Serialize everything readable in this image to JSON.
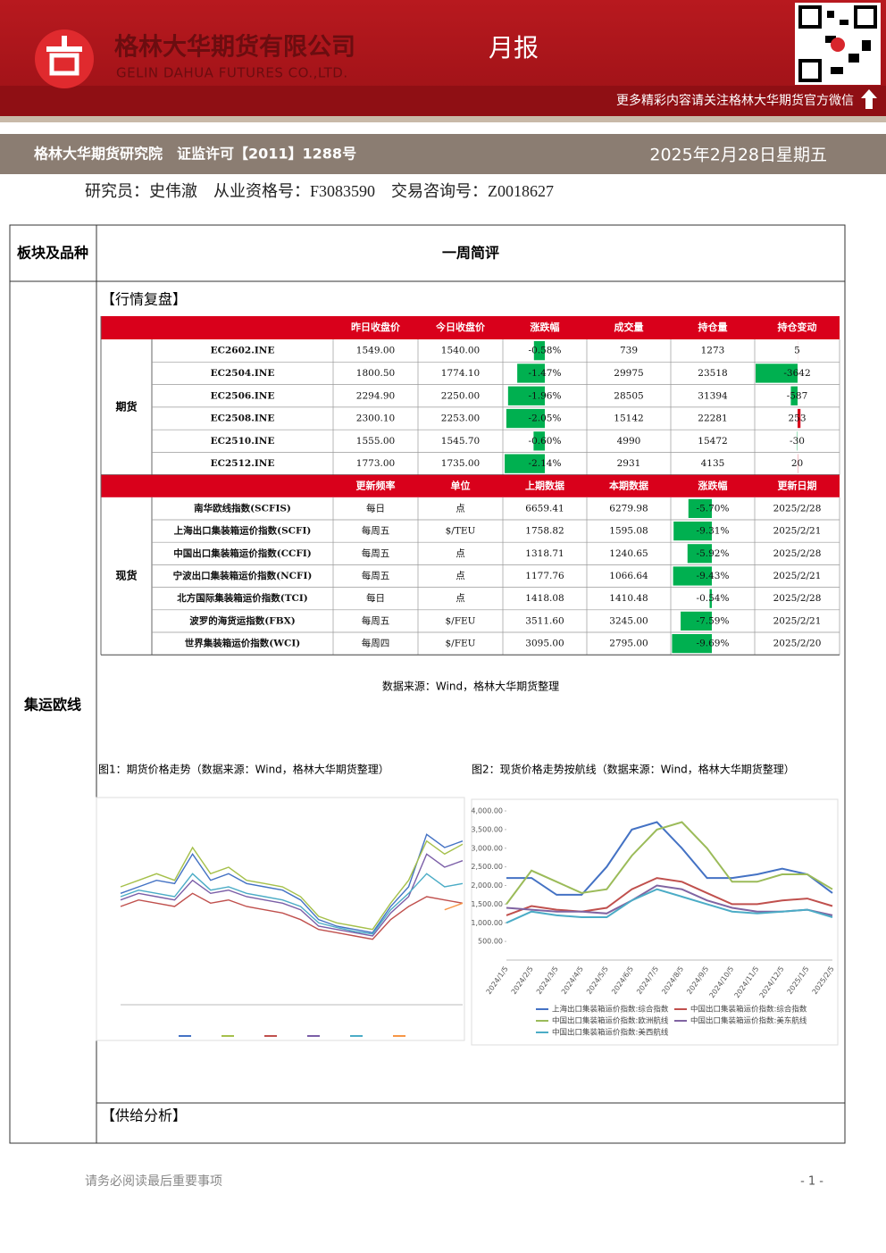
{
  "header": {
    "company_cn": "格林大华期货有限公司",
    "company_en": "GELIN DAHUA FUTURES CO.,LTD.",
    "report_type": "月报",
    "wechat_note": "更多精彩内容请关注格林大华期货官方微信"
  },
  "subheader": {
    "institute": "格林大华期货研究院　证监许可【2011】1288号",
    "date": "2025年2月28日星期五"
  },
  "researcher": "研究员：史伟澈　从业资格号：F3083590　交易咨询号：Z0018627",
  "layout_table": {
    "headers": [
      "板块及品种",
      "一周简评"
    ],
    "category": "集运欧线"
  },
  "sections": {
    "review": "【行情复盘】",
    "supply": "【供给分析】"
  },
  "futures_table": {
    "group": "期货",
    "headers": [
      "昨日收盘价",
      "今日收盘价",
      "涨跌幅",
      "成交量",
      "持仓量",
      "持仓变动"
    ],
    "rows": [
      [
        "EC2602.INE",
        "1549.00",
        "1540.00",
        {
          "value": -0.58,
          "label": "-0.58%"
        },
        739,
        1273,
        5
      ],
      [
        "EC2504.INE",
        "1800.50",
        "1774.10",
        {
          "value": -1.47,
          "label": "-1.47%"
        },
        29975,
        23518,
        -3642
      ],
      [
        "EC2506.INE",
        "2294.90",
        "2250.00",
        {
          "value": -1.96,
          "label": "-1.96%"
        },
        28505,
        31394,
        -587
      ],
      [
        "EC2508.INE",
        "2300.10",
        "2253.00",
        {
          "value": -2.05,
          "label": "-2.05%"
        },
        15142,
        22281,
        253
      ],
      [
        "EC2510.INE",
        "1555.00",
        "1545.70",
        {
          "value": -0.6,
          "label": "-0.60%"
        },
        4990,
        15472,
        -30
      ],
      [
        "EC2512.INE",
        "1773.00",
        "1735.00",
        {
          "value": -2.14,
          "label": "-2.14%"
        },
        2931,
        4135,
        20
      ]
    ]
  },
  "spot_table": {
    "group": "现货",
    "headers": [
      "更新频率",
      "单位",
      "上期数据",
      "本期数据",
      "涨跌幅",
      "更新日期"
    ],
    "rows": [
      [
        "南华欧线指数(SCFIS)",
        "每日",
        "点",
        "6659.41",
        "6279.98",
        {
          "value": -5.7,
          "label": "-5.70%"
        },
        "2025/2/28"
      ],
      [
        "上海出口集装箱运价指数(SCFI)",
        "每周五",
        "$/TEU",
        "1758.82",
        "1595.08",
        {
          "value": -9.31,
          "label": "-9.31%"
        },
        "2025/2/21"
      ],
      [
        "中国出口集装箱运价指数(CCFI)",
        "每周五",
        "点",
        "1318.71",
        "1240.65",
        {
          "value": -5.92,
          "label": "-5.92%"
        },
        "2025/2/28"
      ],
      [
        "宁波出口集装箱运价指数(NCFI)",
        "每周五",
        "点",
        "1177.76",
        "1066.64",
        {
          "value": -9.43,
          "label": "-9.43%"
        },
        "2025/2/21"
      ],
      [
        "北方国际集装箱运价指数(TCI)",
        "每日",
        "点",
        "1418.08",
        "1410.48",
        {
          "value": -0.54,
          "label": "-0.54%"
        },
        "2025/2/28"
      ],
      [
        "波罗的海货运指数(FBX)",
        "每周五",
        "$/FEU",
        "3511.60",
        "3245.00",
        {
          "value": -7.59,
          "label": "-7.59%"
        },
        "2025/2/21"
      ],
      [
        "世界集装箱运价指数(WCI)",
        "每周四",
        "$/FEU",
        "3095.00",
        "2795.00",
        {
          "value": -9.69,
          "label": "-9.69%"
        },
        "2025/2/20"
      ]
    ]
  },
  "source": "数据来源：Wind，格林大华期货整理",
  "chart_data": [
    {
      "type": "line",
      "title": "图1：期货价格走势（数据来源：Wind，格林大华期货整理）",
      "categories": [
        null,
        null,
        null,
        null,
        null,
        null,
        null,
        null,
        null,
        null,
        null,
        null,
        null,
        null,
        null,
        null,
        null,
        null,
        null,
        null
      ],
      "ylim": [
        0,
        3000
      ],
      "series": [
        {
          "color": "#4472c4",
          "values": [
            1700,
            1800,
            1900,
            1850,
            2300,
            1900,
            2000,
            1850,
            1800,
            1750,
            1600,
            1300,
            1200,
            1150,
            1100,
            1500,
            1800,
            2600,
            2400,
            2500
          ]
        },
        {
          "color": "#a5c04b",
          "values": [
            1800,
            1900,
            2000,
            1900,
            2400,
            2000,
            2100,
            1900,
            1850,
            1800,
            1650,
            1350,
            1250,
            1200,
            1150,
            1550,
            1900,
            2500,
            2300,
            2450
          ]
        },
        {
          "color": "#c0504d",
          "values": [
            1500,
            1600,
            1550,
            1500,
            1700,
            1550,
            1600,
            1500,
            1450,
            1400,
            1300,
            1150,
            1100,
            1050,
            1000,
            1300,
            1500,
            1650,
            1600,
            1550
          ]
        },
        {
          "color": "#7b5ea7",
          "values": [
            1600,
            1700,
            1650,
            1600,
            1900,
            1700,
            1750,
            1650,
            1600,
            1550,
            1450,
            1200,
            1150,
            1100,
            1050,
            1400,
            1650,
            2300,
            2100,
            2200
          ]
        },
        {
          "color": "#4bacc6",
          "values": [
            1650,
            1750,
            1700,
            1650,
            2000,
            1750,
            1800,
            1700,
            1650,
            1600,
            1500,
            1250,
            1180,
            1120,
            1080,
            1450,
            1700,
            2000,
            1800,
            1850
          ]
        },
        {
          "color": "#f79646",
          "values": [
            null,
            null,
            null,
            null,
            null,
            null,
            null,
            null,
            null,
            null,
            null,
            null,
            null,
            null,
            null,
            null,
            null,
            null,
            1450,
            1550
          ]
        }
      ]
    },
    {
      "type": "line",
      "title": "图2：现货价格走势按航线（数据来源：Wind，格林大华期货整理）",
      "categories": [
        "2024/1/5",
        "2024/2/5",
        "2024/3/5",
        "2024/4/5",
        "2024/5/5",
        "2024/6/5",
        "2024/7/5",
        "2024/8/5",
        "2024/9/5",
        "2024/10/5",
        "2024/11/5",
        "2024/12/5",
        "2025/1/5",
        "2025/2/5"
      ],
      "ylim": [
        0,
        4000
      ],
      "yticks": [
        {
          "value": 500,
          "label": "500.00"
        },
        {
          "value": 1000,
          "label": "1,000.00"
        },
        {
          "value": 1500,
          "label": "1,500.00"
        },
        {
          "value": 2000,
          "label": "2,000.00"
        },
        {
          "value": 2500,
          "label": "2,500.00"
        },
        {
          "value": 3000,
          "label": "3,000.00"
        },
        {
          "value": 3500,
          "label": "3,500.00"
        },
        {
          "value": 4000,
          "label": "4,000.00"
        }
      ],
      "series": [
        {
          "name": "上海出口集装箱运价指数:综合指数",
          "color": "#4472c4",
          "values": [
            2200,
            2200,
            1750,
            1750,
            2500,
            3500,
            3700,
            3000,
            2200,
            2200,
            2300,
            2450,
            2300,
            1800
          ]
        },
        {
          "name": "中国出口集装箱运价指数:综合指数",
          "color": "#c0504d",
          "values": [
            1200,
            1450,
            1350,
            1300,
            1400,
            1900,
            2200,
            2100,
            1800,
            1500,
            1500,
            1600,
            1650,
            1450
          ]
        },
        {
          "name": "中国出口集装箱运价指数:欧洲航线",
          "color": "#9bbb59",
          "values": [
            1500,
            2400,
            2100,
            1800,
            1900,
            2800,
            3500,
            3700,
            3000,
            2100,
            2100,
            2300,
            2300,
            1900
          ]
        },
        {
          "name": "中国出口集装箱运价指数:美东航线",
          "color": "#8064a2",
          "values": [
            1400,
            1350,
            1300,
            1300,
            1250,
            1600,
            2000,
            1900,
            1600,
            1400,
            1300,
            1300,
            1350,
            1200
          ]
        },
        {
          "name": "中国出口集装箱运价指数:美西航线",
          "color": "#4bacc6",
          "values": [
            1000,
            1300,
            1200,
            1150,
            1150,
            1600,
            1900,
            1700,
            1500,
            1300,
            1250,
            1300,
            1350,
            1150
          ]
        }
      ]
    }
  ],
  "footer": {
    "notice": "请务必阅读最后重要事项",
    "page": "- 1 -"
  }
}
